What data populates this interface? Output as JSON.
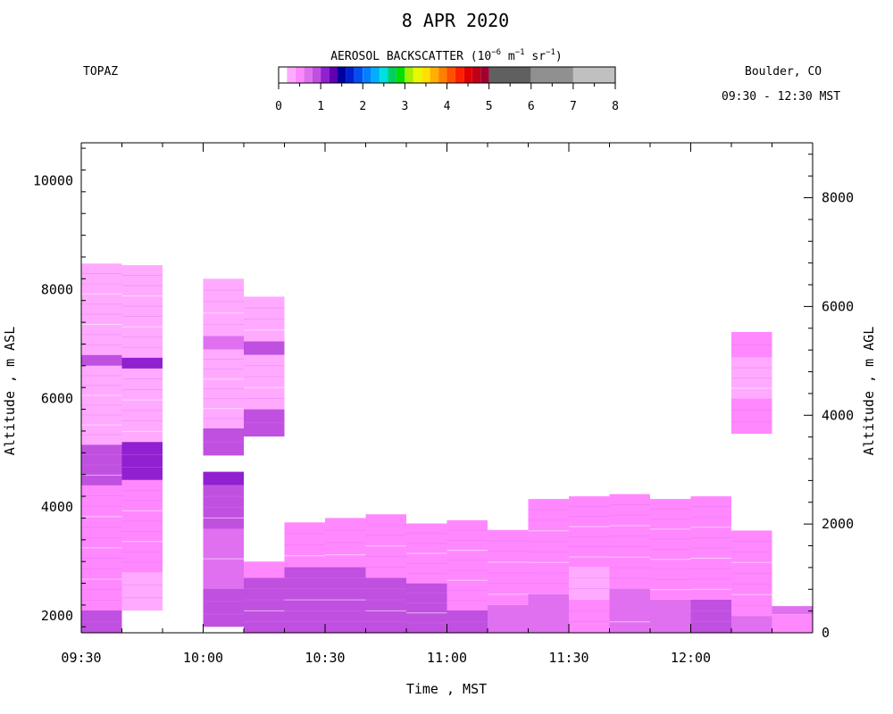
{
  "header": {
    "title": "8 APR 2020",
    "left_label": "TOPAZ",
    "right_label_location": "Boulder, CO",
    "right_label_time": "09:30 - 12:30 MST"
  },
  "chart_data": {
    "type": "heatmap",
    "title": "8 APR 2020",
    "xlabel": "Time , MST",
    "ylabel_left": "Altitude , m ASL",
    "ylabel_right": "Altitude , m AGL",
    "x_range_hours": [
      9.5,
      12.5
    ],
    "x_ticks": [
      "09:30",
      "10:00",
      "10:30",
      "11:00",
      "11:30",
      "12:00"
    ],
    "y_range_asl": [
      1690,
      10700
    ],
    "y_ticks_asl": [
      2000,
      4000,
      6000,
      8000,
      10000
    ],
    "y_ticks_agl": [
      0,
      2000,
      4000,
      6000,
      8000
    ],
    "agl_offset_m": 1690,
    "grid": false,
    "colorbar": {
      "title": "AEROSOL BACKSCATTER (10",
      "title_exp1": "−6",
      "title_mid": " m",
      "title_exp2": "−1",
      "title_mid2": " sr",
      "title_exp3": "−1",
      "title_end": ")",
      "range": [
        0,
        8
      ],
      "tick_labels": [
        "0",
        "1",
        "2",
        "3",
        "4",
        "5",
        "6",
        "7",
        "8"
      ],
      "bins": [
        {
          "from": 0.0,
          "to": 0.2,
          "color": "#ffffff"
        },
        {
          "from": 0.2,
          "to": 0.4,
          "color": "#ffaaff"
        },
        {
          "from": 0.4,
          "to": 0.6,
          "color": "#ff88ff"
        },
        {
          "from": 0.6,
          "to": 0.8,
          "color": "#e070f0"
        },
        {
          "from": 0.8,
          "to": 1.0,
          "color": "#c050e0"
        },
        {
          "from": 1.0,
          "to": 1.2,
          "color": "#9020d0"
        },
        {
          "from": 1.2,
          "to": 1.4,
          "color": "#6000b0"
        },
        {
          "from": 1.4,
          "to": 1.6,
          "color": "#0000a0"
        },
        {
          "from": 1.6,
          "to": 1.8,
          "color": "#0020d0"
        },
        {
          "from": 1.8,
          "to": 2.0,
          "color": "#0050f0"
        },
        {
          "from": 2.0,
          "to": 2.2,
          "color": "#0080ff"
        },
        {
          "from": 2.2,
          "to": 2.4,
          "color": "#00b0ff"
        },
        {
          "from": 2.4,
          "to": 2.6,
          "color": "#00e0e0"
        },
        {
          "from": 2.6,
          "to": 2.8,
          "color": "#00d060"
        },
        {
          "from": 2.8,
          "to": 3.0,
          "color": "#00e000"
        },
        {
          "from": 3.0,
          "to": 3.2,
          "color": "#a0f000"
        },
        {
          "from": 3.2,
          "to": 3.4,
          "color": "#e8f800"
        },
        {
          "from": 3.4,
          "to": 3.6,
          "color": "#ffe000"
        },
        {
          "from": 3.6,
          "to": 3.8,
          "color": "#ffb000"
        },
        {
          "from": 3.8,
          "to": 4.0,
          "color": "#ff8000"
        },
        {
          "from": 4.0,
          "to": 4.2,
          "color": "#ff5000"
        },
        {
          "from": 4.2,
          "to": 4.4,
          "color": "#ff2000"
        },
        {
          "from": 4.4,
          "to": 4.6,
          "color": "#e00000"
        },
        {
          "from": 4.6,
          "to": 4.8,
          "color": "#c00018"
        },
        {
          "from": 4.8,
          "to": 5.0,
          "color": "#a00030"
        },
        {
          "from": 5.0,
          "to": 6.0,
          "color": "#606060"
        },
        {
          "from": 6.0,
          "to": 7.0,
          "color": "#909090"
        },
        {
          "from": 7.0,
          "to": 8.0,
          "color": "#c0c0c0"
        }
      ]
    },
    "palette": {
      "light": "#ffaaff",
      "medium": "#ff88ff",
      "mediumdark": "#e070f0",
      "dark": "#c050e0",
      "darker": "#9020d0",
      "gap": "#ffffff"
    },
    "columns": [
      {
        "start": "09:30",
        "end": "09:40",
        "base_asl": 1690,
        "segments": [
          {
            "bottom": 1690,
            "top": 2100,
            "value": "dark"
          },
          {
            "bottom": 2100,
            "top": 4400,
            "value": "medium"
          },
          {
            "bottom": 4400,
            "top": 5150,
            "value": "dark"
          },
          {
            "bottom": 5150,
            "top": 6600,
            "value": "light"
          },
          {
            "bottom": 6600,
            "top": 6800,
            "value": "dark"
          },
          {
            "bottom": 6800,
            "top": 8480,
            "value": "light"
          }
        ]
      },
      {
        "start": "09:40",
        "end": "09:50",
        "base_asl": 2100,
        "segments": [
          {
            "bottom": 2100,
            "top": 2800,
            "value": "light"
          },
          {
            "bottom": 2800,
            "top": 4500,
            "value": "medium"
          },
          {
            "bottom": 4500,
            "top": 5200,
            "value": "darker"
          },
          {
            "bottom": 5200,
            "top": 6550,
            "value": "light"
          },
          {
            "bottom": 6550,
            "top": 6750,
            "value": "darker"
          },
          {
            "bottom": 6750,
            "top": 8450,
            "value": "light"
          }
        ]
      },
      {
        "start": "10:00",
        "end": "10:10",
        "base_asl": 1800,
        "segments": [
          {
            "bottom": 1800,
            "top": 2500,
            "value": "dark"
          },
          {
            "bottom": 2500,
            "top": 3600,
            "value": "mediumdark"
          },
          {
            "bottom": 3600,
            "top": 4400,
            "value": "dark"
          },
          {
            "bottom": 4400,
            "top": 4650,
            "value": "darker"
          }
        ]
      },
      {
        "start": "10:00",
        "end": "10:10",
        "base_asl": 4950,
        "segments": [
          {
            "bottom": 4950,
            "top": 5450,
            "value": "dark"
          },
          {
            "bottom": 5450,
            "top": 6900,
            "value": "light"
          },
          {
            "bottom": 6900,
            "top": 7150,
            "value": "mediumdark"
          },
          {
            "bottom": 7150,
            "top": 8200,
            "value": "light"
          }
        ]
      },
      {
        "start": "10:10",
        "end": "10:20",
        "base_asl": 1690,
        "segments": [
          {
            "bottom": 1690,
            "top": 2700,
            "value": "dark"
          },
          {
            "bottom": 2700,
            "top": 3000,
            "value": "medium"
          }
        ]
      },
      {
        "start": "10:10",
        "end": "10:20",
        "base_asl": 5300,
        "segments": [
          {
            "bottom": 5300,
            "top": 5800,
            "value": "dark"
          },
          {
            "bottom": 5800,
            "top": 6800,
            "value": "light"
          },
          {
            "bottom": 6800,
            "top": 7050,
            "value": "dark"
          },
          {
            "bottom": 7050,
            "top": 7870,
            "value": "light"
          }
        ]
      },
      {
        "start": "10:20",
        "end": "10:30",
        "base_asl": 1690,
        "segments": [
          {
            "bottom": 1690,
            "top": 2900,
            "value": "dark"
          },
          {
            "bottom": 2900,
            "top": 3720,
            "value": "medium"
          }
        ]
      },
      {
        "start": "10:30",
        "end": "10:40",
        "base_asl": 1690,
        "segments": [
          {
            "bottom": 1690,
            "top": 2900,
            "value": "dark"
          },
          {
            "bottom": 2900,
            "top": 3800,
            "value": "medium"
          }
        ]
      },
      {
        "start": "10:40",
        "end": "10:50",
        "base_asl": 1690,
        "segments": [
          {
            "bottom": 1690,
            "top": 2700,
            "value": "dark"
          },
          {
            "bottom": 2700,
            "top": 3870,
            "value": "medium"
          }
        ]
      },
      {
        "start": "10:50",
        "end": "11:00",
        "base_asl": 1690,
        "segments": [
          {
            "bottom": 1690,
            "top": 2600,
            "value": "dark"
          },
          {
            "bottom": 2600,
            "top": 3700,
            "value": "medium"
          }
        ]
      },
      {
        "start": "11:00",
        "end": "11:10",
        "base_asl": 1690,
        "segments": [
          {
            "bottom": 1690,
            "top": 2100,
            "value": "dark"
          },
          {
            "bottom": 2100,
            "top": 3760,
            "value": "medium"
          }
        ]
      },
      {
        "start": "11:10",
        "end": "11:20",
        "base_asl": 1690,
        "segments": [
          {
            "bottom": 1690,
            "top": 2200,
            "value": "mediumdark"
          },
          {
            "bottom": 2200,
            "top": 3580,
            "value": "medium"
          }
        ]
      },
      {
        "start": "11:20",
        "end": "11:30",
        "base_asl": 1690,
        "segments": [
          {
            "bottom": 1690,
            "top": 2400,
            "value": "mediumdark"
          },
          {
            "bottom": 2400,
            "top": 4150,
            "value": "medium"
          }
        ]
      },
      {
        "start": "11:30",
        "end": "11:40",
        "base_asl": 1690,
        "segments": [
          {
            "bottom": 1690,
            "top": 2300,
            "value": "medium"
          },
          {
            "bottom": 2300,
            "top": 2900,
            "value": "light"
          },
          {
            "bottom": 2900,
            "top": 4200,
            "value": "medium"
          }
        ]
      },
      {
        "start": "11:40",
        "end": "11:50",
        "base_asl": 1690,
        "segments": [
          {
            "bottom": 1690,
            "top": 2500,
            "value": "mediumdark"
          },
          {
            "bottom": 2500,
            "top": 4240,
            "value": "medium"
          }
        ]
      },
      {
        "start": "11:50",
        "end": "12:00",
        "base_asl": 1690,
        "segments": [
          {
            "bottom": 1690,
            "top": 2300,
            "value": "mediumdark"
          },
          {
            "bottom": 2300,
            "top": 4150,
            "value": "medium"
          }
        ]
      },
      {
        "start": "12:00",
        "end": "12:10",
        "base_asl": 1690,
        "segments": [
          {
            "bottom": 1690,
            "top": 2300,
            "value": "dark"
          },
          {
            "bottom": 2300,
            "top": 4200,
            "value": "medium"
          }
        ]
      },
      {
        "start": "12:10",
        "end": "12:20",
        "base_asl": 1690,
        "segments": [
          {
            "bottom": 1690,
            "top": 2000,
            "value": "mediumdark"
          },
          {
            "bottom": 2000,
            "top": 3570,
            "value": "medium"
          }
        ]
      },
      {
        "start": "12:10",
        "end": "12:20",
        "base_asl": 5350,
        "segments": [
          {
            "bottom": 5350,
            "top": 6000,
            "value": "medium"
          },
          {
            "bottom": 6000,
            "top": 6750,
            "value": "light"
          },
          {
            "bottom": 6750,
            "top": 7220,
            "value": "medium"
          }
        ]
      },
      {
        "start": "12:20",
        "end": "12:30",
        "base_asl": 1690,
        "segments": [
          {
            "bottom": 1690,
            "top": 2030,
            "value": "medium"
          },
          {
            "bottom": 2030,
            "top": 2180,
            "value": "mediumdark"
          }
        ]
      }
    ]
  }
}
